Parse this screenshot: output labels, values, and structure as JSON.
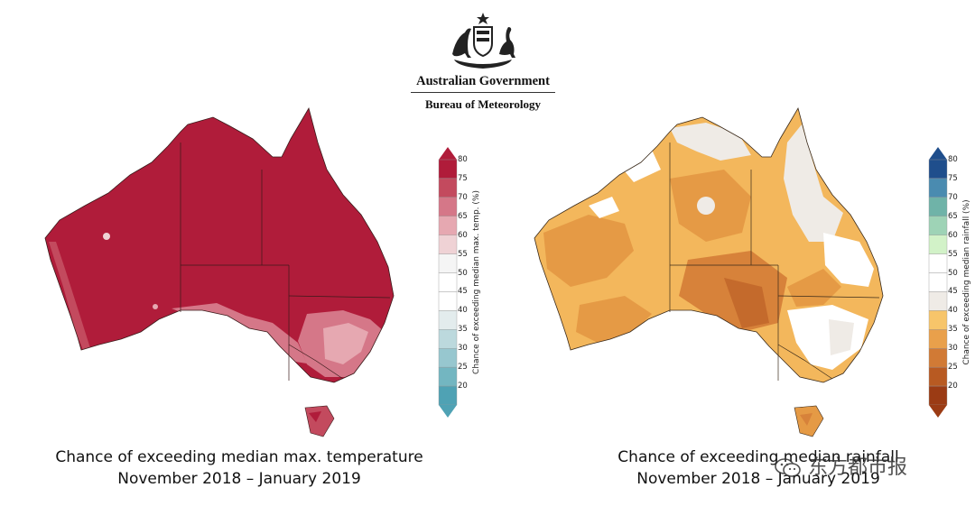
{
  "header": {
    "title": "Australian Government",
    "subtitle": "Bureau of Meteorology",
    "emblem_icon": "coat-of-arms-icon"
  },
  "maps": [
    {
      "name": "temperature",
      "caption_line1": "Chance of exceeding median max. temperature",
      "caption_line2": "November 2018 – January 2019",
      "colorbar_label": "Chance of exceeding median max. temp. (%)",
      "ticks": [
        "80",
        "75",
        "70",
        "65",
        "60",
        "55",
        "50",
        "45",
        "40",
        "35",
        "30",
        "25",
        "20"
      ],
      "colors": [
        "#b01c3a",
        "#c34a5e",
        "#d57788",
        "#e6a8b1",
        "#efd2d5",
        "#f5f5f5",
        "#ffffff",
        "#ffffff",
        "#e3eced",
        "#bcd9dd",
        "#97c7cf",
        "#73b6c1",
        "#4fa2b4"
      ],
      "dominant_color": "#b01c3a"
    },
    {
      "name": "rainfall",
      "caption_line1": "Chance of exceeding median rainfall",
      "caption_line2": "November 2018 – January 2019",
      "colorbar_label": "Chance of exceeding median rainfall (%)",
      "ticks": [
        "80",
        "75",
        "70",
        "65",
        "60",
        "55",
        "50",
        "45",
        "40",
        "35",
        "30",
        "25",
        "20"
      ],
      "colors": [
        "#1f4e8c",
        "#4a8bb0",
        "#6fb3a8",
        "#9ed3b6",
        "#d2f2c8",
        "#ffffff",
        "#ffffff",
        "#efebe6",
        "#f7c56a",
        "#e9a04b",
        "#d17a35",
        "#b85a22",
        "#9b3b14"
      ],
      "dominant_color": "#f2b35a"
    }
  ],
  "watermark": {
    "text": "东方都市报",
    "icon": "wechat-icon"
  }
}
